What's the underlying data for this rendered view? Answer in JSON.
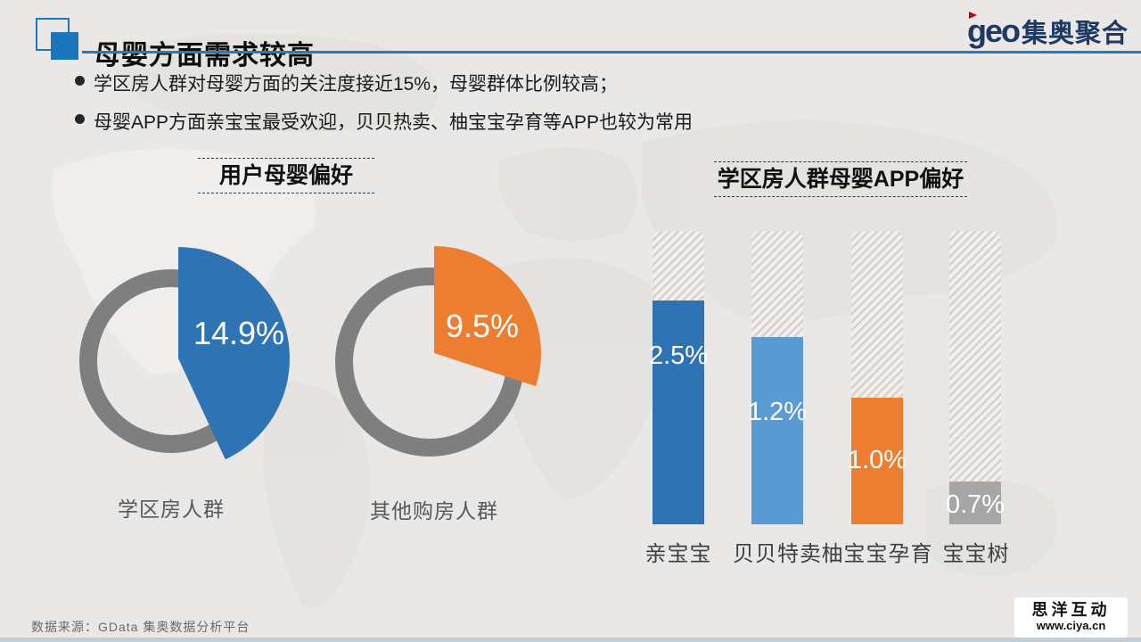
{
  "slide": {
    "title": "母婴方面需求较高",
    "bullets": [
      "学区房人群对母婴方面的关注度接近15%，母婴群体比例较高；",
      "母婴APP方面亲宝宝最受欢迎，贝贝热卖、柚宝宝孕育等APP也较为常用"
    ],
    "source_note": "数据来源：GData  集奥数据分析平台"
  },
  "logo": {
    "mark": "geo",
    "name": "集奥聚合"
  },
  "watermark": {
    "line1": "思洋互动",
    "line2": "www.ciya.cn"
  },
  "colors": {
    "accent_blue": "#2e74b5",
    "light_blue": "#5b9bd5",
    "orange": "#ed7d31",
    "gray_bar": "#a6a6a6",
    "ring_gray": "#7f7f7f",
    "underline_blue": "#2b7ab8",
    "logo_navy": "#1f3864",
    "logo_red": "#c00000",
    "background": "#e9e8e6"
  },
  "chart_data": [
    {
      "type": "pie",
      "title": "用户母婴偏好",
      "style": "exploded colored slice over gray donut ring, one donut per group",
      "items": [
        {
          "label": "学区房人群",
          "value": 14.9,
          "value_label": "14.9%",
          "color": "#2e74b5",
          "slice_sweep_deg": 155
        },
        {
          "label": "其他购房人群",
          "value": 9.5,
          "value_label": "9.5%",
          "color": "#ed7d31",
          "slice_sweep_deg": 108
        }
      ]
    },
    {
      "type": "bar",
      "title": "学区房人群母婴APP偏好",
      "orientation": "vertical",
      "unit": "%",
      "categories": [
        "亲宝宝",
        "贝贝特卖",
        "柚宝宝孕育",
        "宝宝树"
      ],
      "values": [
        2.5,
        1.2,
        1.0,
        0.7
      ],
      "value_labels": [
        "2.5%",
        "1.2%",
        "1.0%",
        "0.7%"
      ],
      "bar_colors": [
        "#2e74b5",
        "#5b9bd5",
        "#ed7d31",
        "#a6a6a6"
      ],
      "track_style": "full-height diagonal-hatched columns with rounded tops",
      "fill_fractions": [
        0.763,
        0.638,
        0.432,
        0.146
      ]
    }
  ]
}
